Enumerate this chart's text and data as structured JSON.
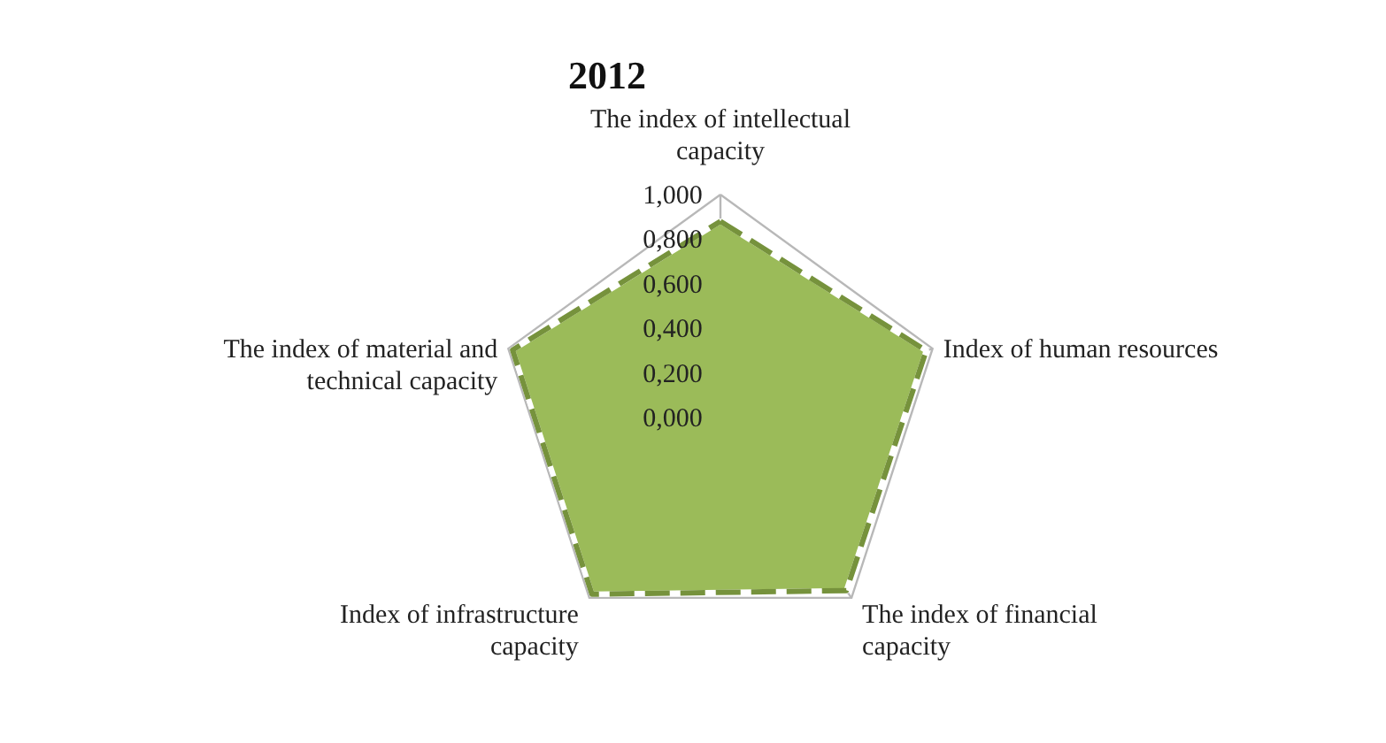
{
  "chart_data": {
    "type": "radar",
    "title": "2012",
    "categories": [
      "The index of intellectual capacity",
      "Index of human resources",
      "The index of financial capacity",
      "Index of infrastructure capacity",
      "The index of material and technical capacity"
    ],
    "series": [
      {
        "color": "#9bbb59",
        "values": [
          0.88,
          0.97,
          0.96,
          0.98,
          0.98
        ]
      }
    ],
    "ylim": [
      0,
      1
    ],
    "yticks": [
      {
        "value": 0,
        "label": "0,000"
      },
      {
        "value": 0.2,
        "label": "0,200"
      },
      {
        "value": 0.4,
        "label": "0,400"
      },
      {
        "value": 0.6,
        "label": "0,600"
      },
      {
        "value": 0.8,
        "label": "0,800"
      },
      {
        "value": 1,
        "label": "1,000"
      }
    ],
    "grid": true,
    "line_style": "dashed"
  }
}
